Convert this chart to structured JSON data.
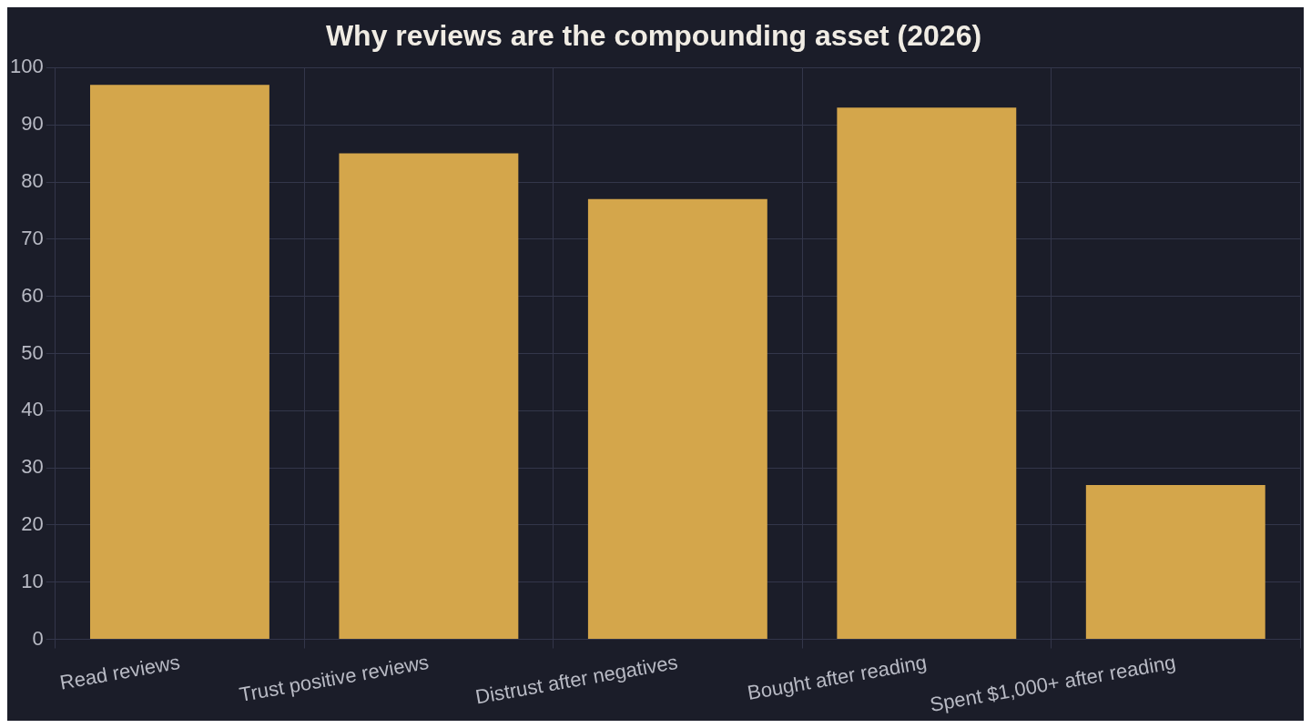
{
  "chart_data": {
    "type": "bar",
    "title": "Why reviews are the compounding asset (2026)",
    "categories": [
      "Read reviews",
      "Trust positive reviews",
      "Distrust after negatives",
      "Bought after reading",
      "Spent $1,000+ after reading"
    ],
    "values": [
      97,
      85,
      77,
      93,
      27
    ],
    "color": "#d4a64b",
    "ylim": [
      0,
      100
    ],
    "yticks": [
      0,
      10,
      20,
      30,
      40,
      50,
      60,
      70,
      80,
      90,
      100
    ],
    "grid": true
  }
}
